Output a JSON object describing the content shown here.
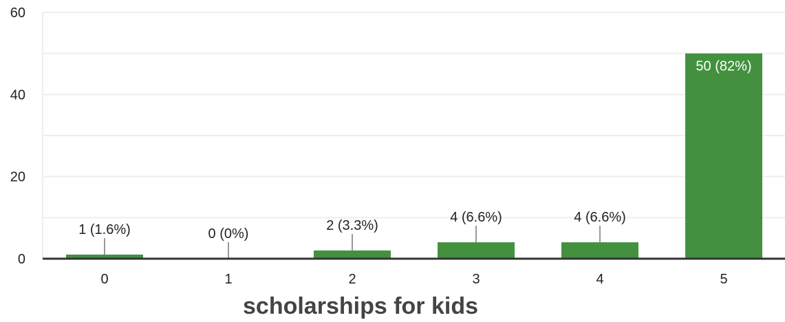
{
  "chart_data": {
    "type": "bar",
    "categories": [
      "0",
      "1",
      "2",
      "3",
      "4",
      "5"
    ],
    "values": [
      1,
      0,
      2,
      4,
      4,
      50
    ],
    "data_labels": [
      "1 (1.6%)",
      "0 (0%)",
      "2 (3.3%)",
      "4 (6.6%)",
      "4 (6.6%)",
      "50 (82%)"
    ],
    "xlabel": "scholarships for kids",
    "ylabel": "",
    "ylim": [
      0,
      60
    ],
    "yticks": [
      "0",
      "20",
      "40",
      "60"
    ],
    "grid": true,
    "legend": "none",
    "bar_color": "#43913f",
    "grid_color": "#eeeeee",
    "axis_color": "#333333"
  }
}
